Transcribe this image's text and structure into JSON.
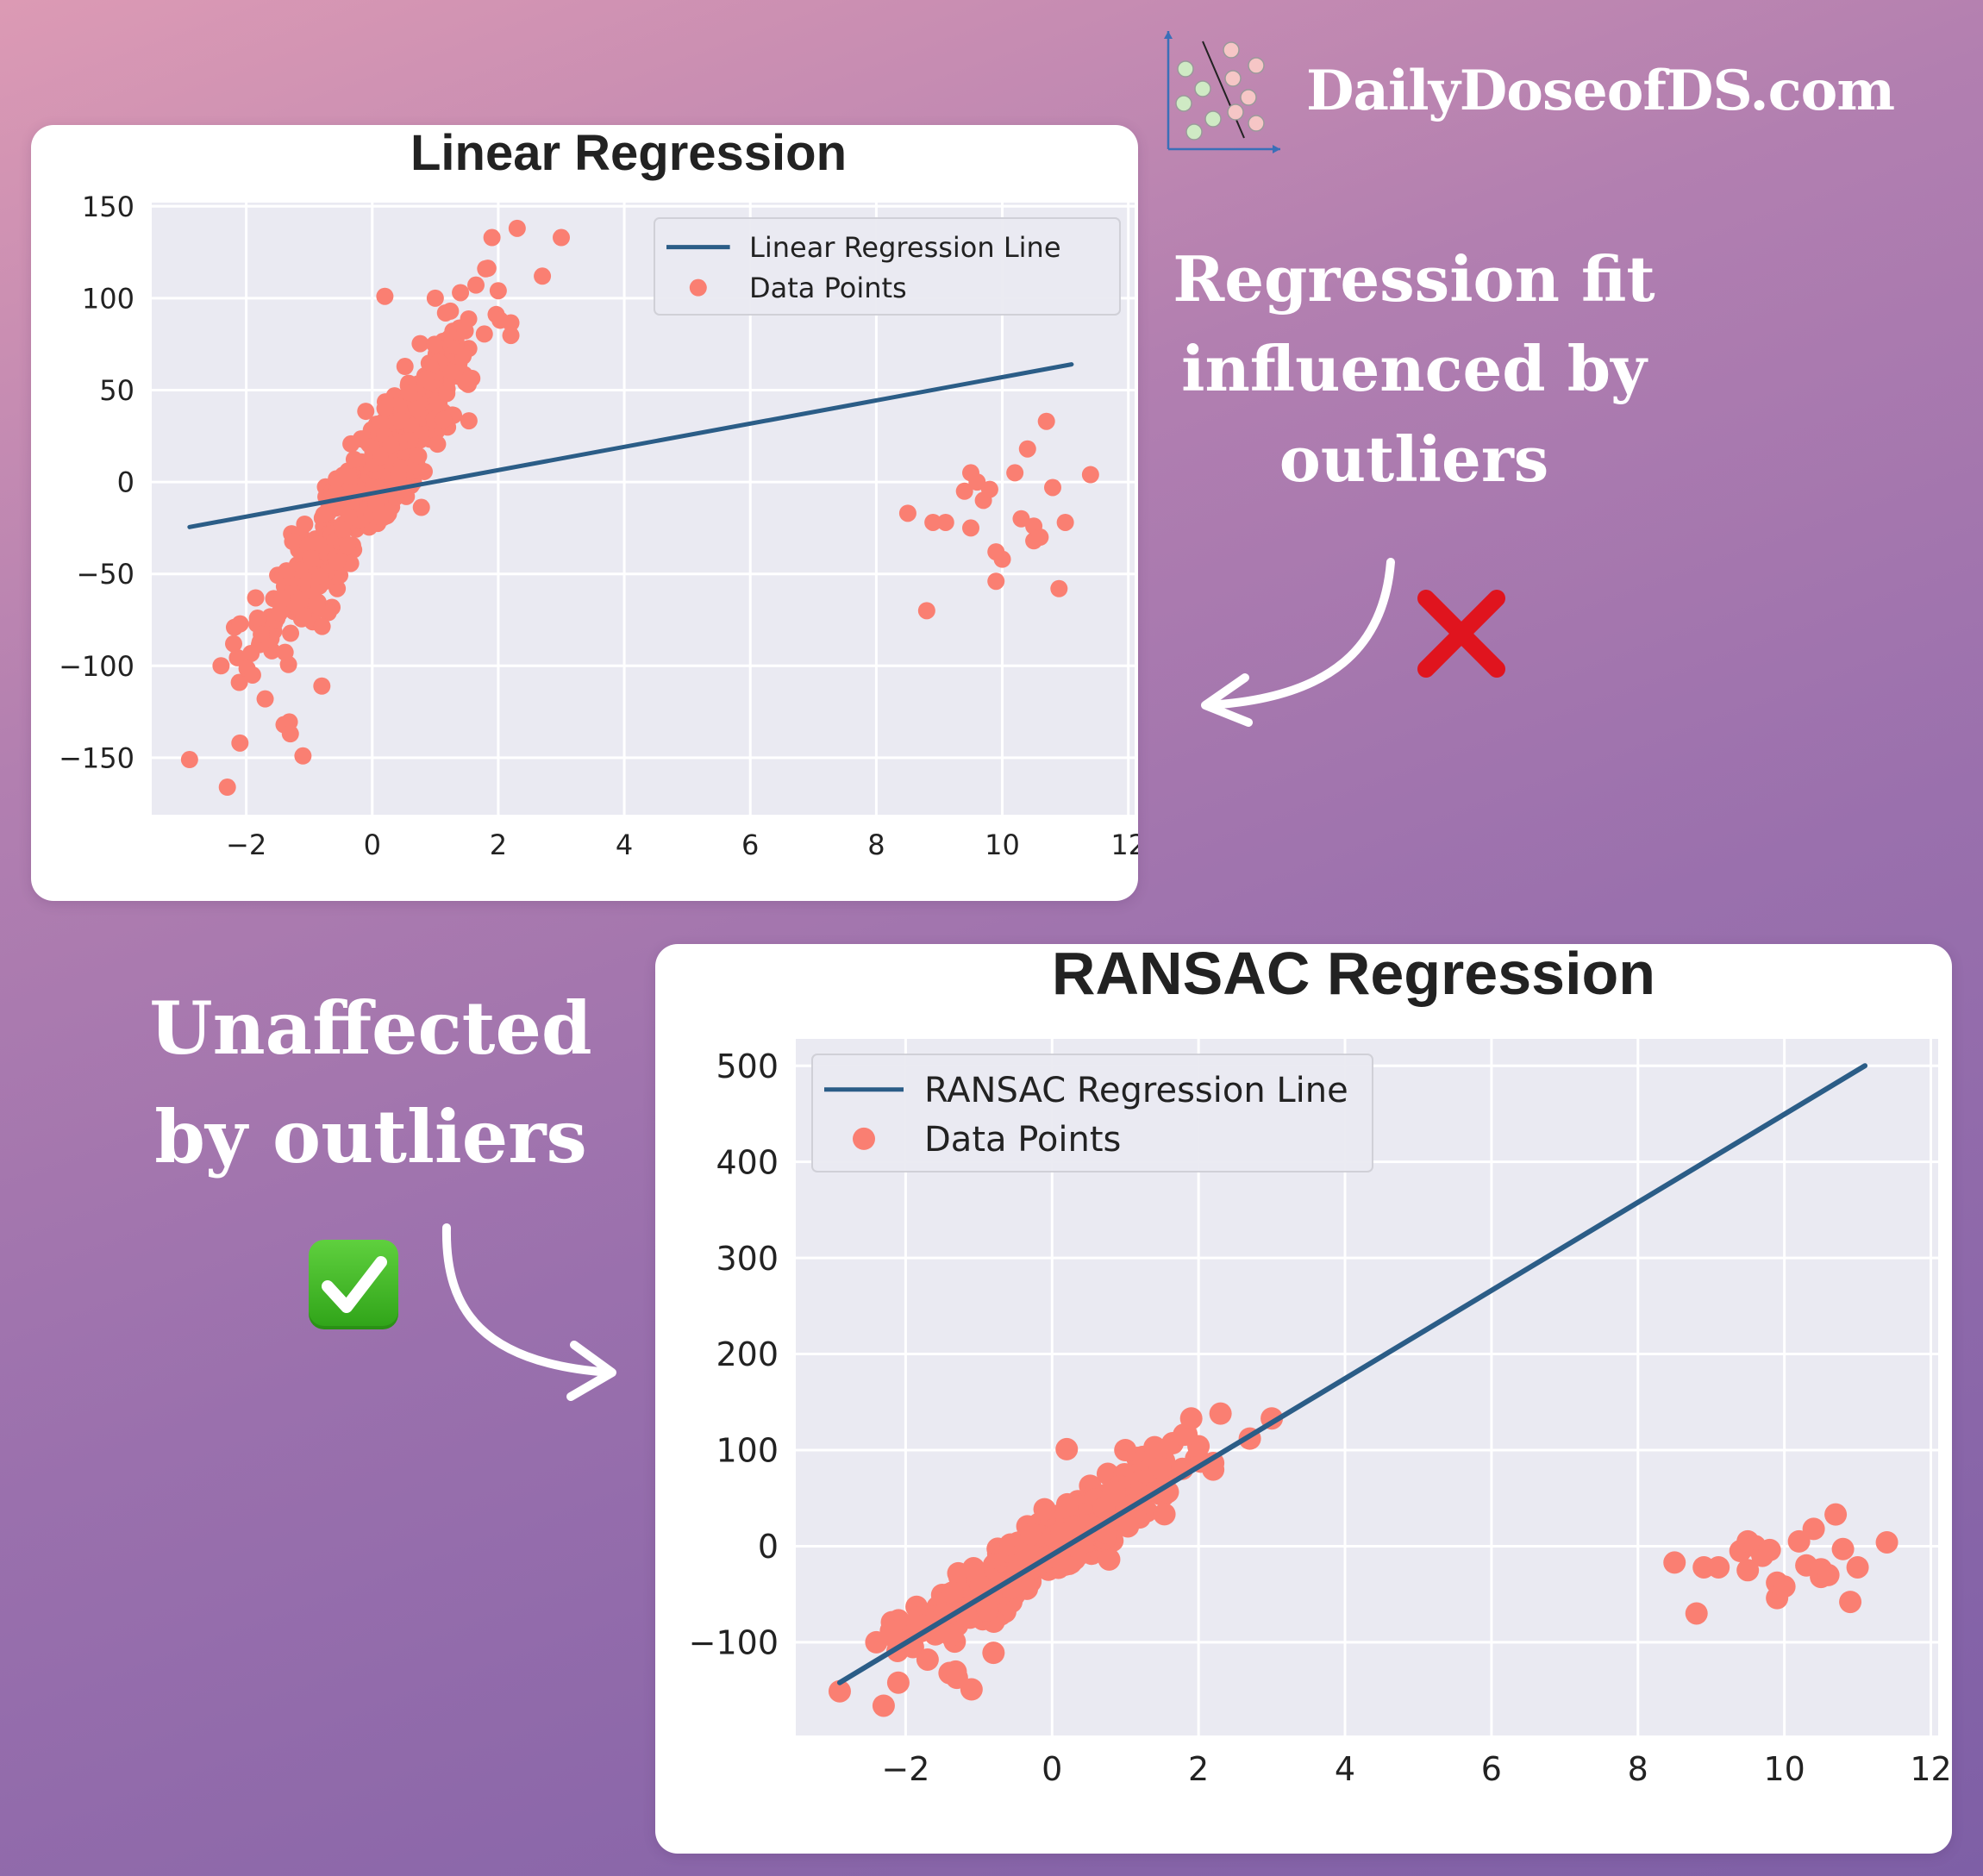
{
  "brand": {
    "name": "DailyDoseofDS.com",
    "logo_icon": "scatter-plot-logo-icon"
  },
  "captions": {
    "top": [
      "Regression fit",
      "influenced by",
      "outliers"
    ],
    "bottom": [
      "Unaffected",
      "by outliers"
    ]
  },
  "icons": {
    "cross": "cross-mark-icon",
    "check": "check-mark-icon",
    "arrow": "curved-arrow-icon"
  },
  "colors": {
    "line": "#2b5d87",
    "points": "#fa7f72",
    "plot_bg": "#eaeaf2",
    "cross": "#e0141e",
    "check": "#3cb822"
  },
  "chart_data": [
    {
      "type": "scatter",
      "title": "Linear Regression",
      "xlabel": "",
      "ylabel": "",
      "xlim": [
        -3.5,
        12.1
      ],
      "ylim": [
        -181,
        152
      ],
      "xticks": [
        -2,
        0,
        2,
        4,
        6,
        8,
        10,
        12
      ],
      "xtick_labels": [
        "−2",
        "0",
        "2",
        "4",
        "6",
        "8",
        "10",
        "12"
      ],
      "yticks": [
        -150,
        -100,
        -50,
        0,
        50,
        100,
        150
      ],
      "ytick_labels": [
        "−150",
        "−100",
        "−50",
        "0",
        "50",
        "100",
        "150"
      ],
      "grid": true,
      "legend_position": "top-right",
      "line": {
        "name": "Linear Regression Line",
        "x": [
          -2.9,
          11.1
        ],
        "y": [
          -24.5,
          64
        ]
      },
      "points_name": "Data Points",
      "inlier_slope": 45,
      "inlier_count": 470,
      "outliers": {
        "x": [
          8.5,
          8.8,
          8.9,
          9.1,
          9.4,
          9.5,
          9.5,
          9.6,
          9.7,
          9.8,
          9.9,
          9.9,
          10.0,
          10.2,
          10.3,
          10.4,
          10.5,
          10.5,
          10.6,
          10.7,
          10.8,
          10.9,
          11.0,
          11.4
        ],
        "y": [
          -17,
          -70,
          -22,
          -22,
          -5,
          5,
          -25,
          0,
          -10,
          -4,
          -54,
          -38,
          -42,
          5,
          -20,
          18,
          -32,
          -24,
          -30,
          33,
          -3,
          -58,
          -22,
          4
        ]
      },
      "extreme_points": {
        "x": [
          -2.9,
          -2.3,
          -2.2,
          -2.1,
          -1.9,
          -1.7,
          -1.4,
          -1.3,
          -1.1,
          -0.8,
          0.2,
          1.0,
          1.4,
          1.8,
          1.9,
          2.3,
          2.7,
          3.0
        ],
        "y": [
          -151,
          -166,
          -88,
          -142,
          -105,
          -118,
          -132,
          -137,
          -149,
          -111,
          101,
          100,
          103,
          116,
          133,
          138,
          112,
          133
        ]
      }
    },
    {
      "type": "scatter",
      "title": "RANSAC Regression",
      "xlabel": "",
      "ylabel": "",
      "xlim": [
        -3.5,
        12.1
      ],
      "ylim": [
        -197,
        528
      ],
      "xticks": [
        -2,
        0,
        2,
        4,
        6,
        8,
        10,
        12
      ],
      "xtick_labels": [
        "−2",
        "0",
        "2",
        "4",
        "6",
        "8",
        "10",
        "12"
      ],
      "yticks": [
        -100,
        0,
        100,
        200,
        300,
        400,
        500
      ],
      "ytick_labels": [
        "−100",
        "0",
        "100",
        "200",
        "300",
        "400",
        "500"
      ],
      "grid": true,
      "legend_position": "top-left",
      "line": {
        "name": "RANSAC Regression Line",
        "x": [
          -2.9,
          11.1
        ],
        "y": [
          -142,
          500
        ]
      },
      "points_name": "Data Points",
      "inlier_slope": 45,
      "inlier_count": 470,
      "outliers": {
        "x": [
          8.5,
          8.8,
          8.9,
          9.1,
          9.4,
          9.5,
          9.5,
          9.6,
          9.7,
          9.8,
          9.9,
          9.9,
          10.0,
          10.2,
          10.3,
          10.4,
          10.5,
          10.5,
          10.6,
          10.7,
          10.8,
          10.9,
          11.0,
          11.4
        ],
        "y": [
          -17,
          -70,
          -22,
          -22,
          -5,
          5,
          -25,
          0,
          -10,
          -4,
          -54,
          -38,
          -42,
          5,
          -20,
          18,
          -32,
          -24,
          -30,
          33,
          -3,
          -58,
          -22,
          4
        ]
      },
      "extreme_points": {
        "x": [
          -2.9,
          -2.3,
          -2.2,
          -2.1,
          -1.9,
          -1.7,
          -1.4,
          -1.3,
          -1.1,
          -0.8,
          0.2,
          1.0,
          1.4,
          1.8,
          1.9,
          2.3,
          2.7,
          3.0
        ],
        "y": [
          -151,
          -166,
          -88,
          -142,
          -105,
          -118,
          -132,
          -137,
          -149,
          -111,
          101,
          100,
          103,
          116,
          133,
          138,
          112,
          133
        ]
      }
    }
  ]
}
